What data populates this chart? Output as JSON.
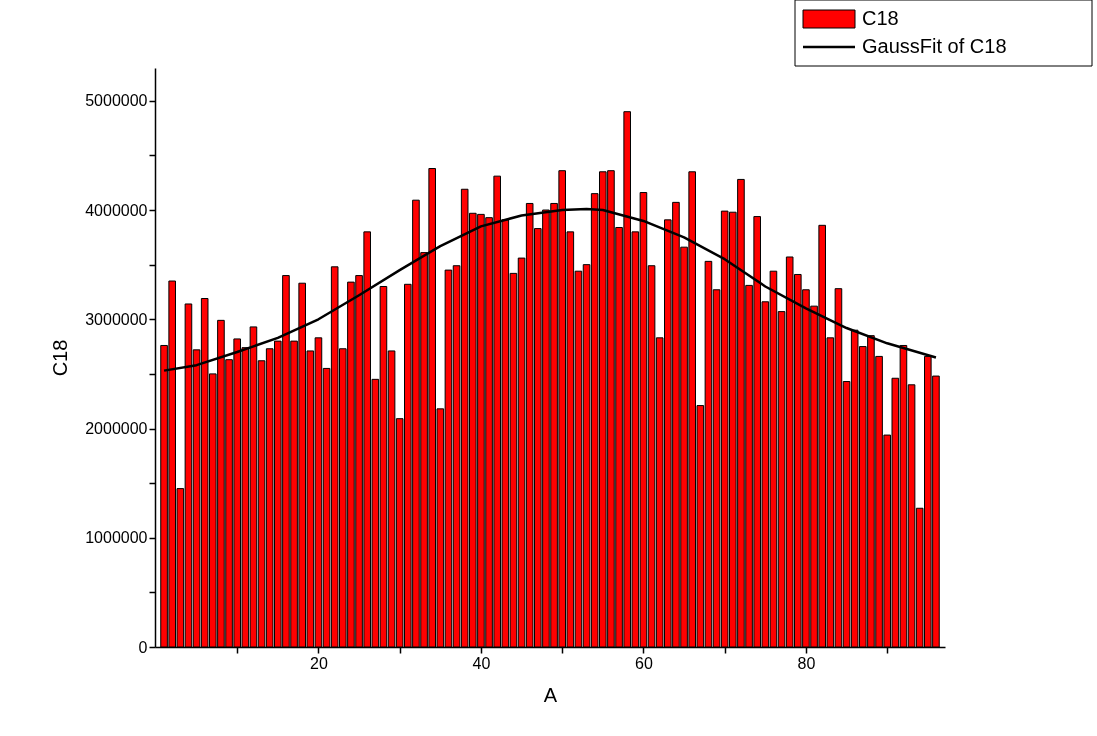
{
  "chart_data": {
    "type": "bar",
    "xlabel": "A",
    "ylabel": "C18",
    "x": [
      1,
      2,
      3,
      4,
      5,
      6,
      7,
      8,
      9,
      10,
      11,
      12,
      13,
      14,
      15,
      16,
      17,
      18,
      19,
      20,
      21,
      22,
      23,
      24,
      25,
      26,
      27,
      28,
      29,
      30,
      31,
      32,
      33,
      34,
      35,
      36,
      37,
      38,
      39,
      40,
      41,
      42,
      43,
      44,
      45,
      46,
      47,
      48,
      49,
      50,
      51,
      52,
      53,
      54,
      55,
      56,
      57,
      58,
      59,
      60,
      61,
      62,
      63,
      64,
      65,
      66,
      67,
      68,
      69,
      70,
      71,
      72,
      73,
      74,
      75,
      76,
      77,
      78,
      79,
      80,
      81,
      82,
      83,
      84,
      85,
      86,
      87,
      88,
      89,
      90,
      91,
      92,
      93,
      94,
      95,
      96
    ],
    "series": [
      {
        "name": "C18",
        "color": "#ff0000",
        "values": [
          2760000,
          3350000,
          1450000,
          3140000,
          2720000,
          3190000,
          2500000,
          2990000,
          2630000,
          2820000,
          2740000,
          2930000,
          2620000,
          2730000,
          2800000,
          3400000,
          2800000,
          3330000,
          2710000,
          2830000,
          2550000,
          3480000,
          2730000,
          3340000,
          3400000,
          3800000,
          2450000,
          3300000,
          2710000,
          2090000,
          3320000,
          4090000,
          3610000,
          4380000,
          2180000,
          3450000,
          3490000,
          4190000,
          3970000,
          3960000,
          3930000,
          4310000,
          3910000,
          3420000,
          3560000,
          4060000,
          3830000,
          4000000,
          4060000,
          4360000,
          3800000,
          3440000,
          3500000,
          4150000,
          4350000,
          4360000,
          3840000,
          4900000,
          3800000,
          4160000,
          3490000,
          2830000,
          3910000,
          4070000,
          3660000,
          4350000,
          2210000,
          3530000,
          3270000,
          3990000,
          3980000,
          4280000,
          3310000,
          3940000,
          3160000,
          3440000,
          3070000,
          3570000,
          3410000,
          3270000,
          3120000,
          3860000,
          2830000,
          3280000,
          2430000,
          2900000,
          2750000,
          2850000,
          2660000,
          1940000,
          2460000,
          2760000,
          2400000,
          1270000,
          2660000,
          2480000
        ]
      },
      {
        "name": "GaussFit of C18",
        "type": "line",
        "color": "#000000",
        "x": [
          1,
          5,
          10,
          15,
          20,
          25,
          30,
          35,
          40,
          45,
          50,
          53,
          55,
          60,
          65,
          70,
          75,
          80,
          85,
          90,
          96
        ],
        "values": [
          2530000,
          2580000,
          2700000,
          2830000,
          3000000,
          3220000,
          3450000,
          3670000,
          3850000,
          3950000,
          4000000,
          4010000,
          4000000,
          3900000,
          3750000,
          3550000,
          3300000,
          3100000,
          2920000,
          2780000,
          2650000
        ]
      }
    ],
    "xlim": [
      0.5,
      96.5
    ],
    "xticks": [
      {
        "value": 10,
        "label": null
      },
      20,
      {
        "value": 30,
        "label": null
      },
      40,
      {
        "value": 50,
        "label": null
      },
      60,
      {
        "value": 70,
        "label": null
      },
      80,
      {
        "value": 90,
        "label": null
      }
    ],
    "ylim": [
      0,
      5300000
    ],
    "yticks": [
      0,
      {
        "value": 500000,
        "label": null
      },
      1000000,
      {
        "value": 1500000,
        "label": null
      },
      2000000,
      {
        "value": 2500000,
        "label": null
      },
      3000000,
      {
        "value": 3500000,
        "label": null
      },
      4000000,
      {
        "value": 4500000,
        "label": null
      },
      5000000
    ],
    "grid": false,
    "legend": "top right"
  }
}
